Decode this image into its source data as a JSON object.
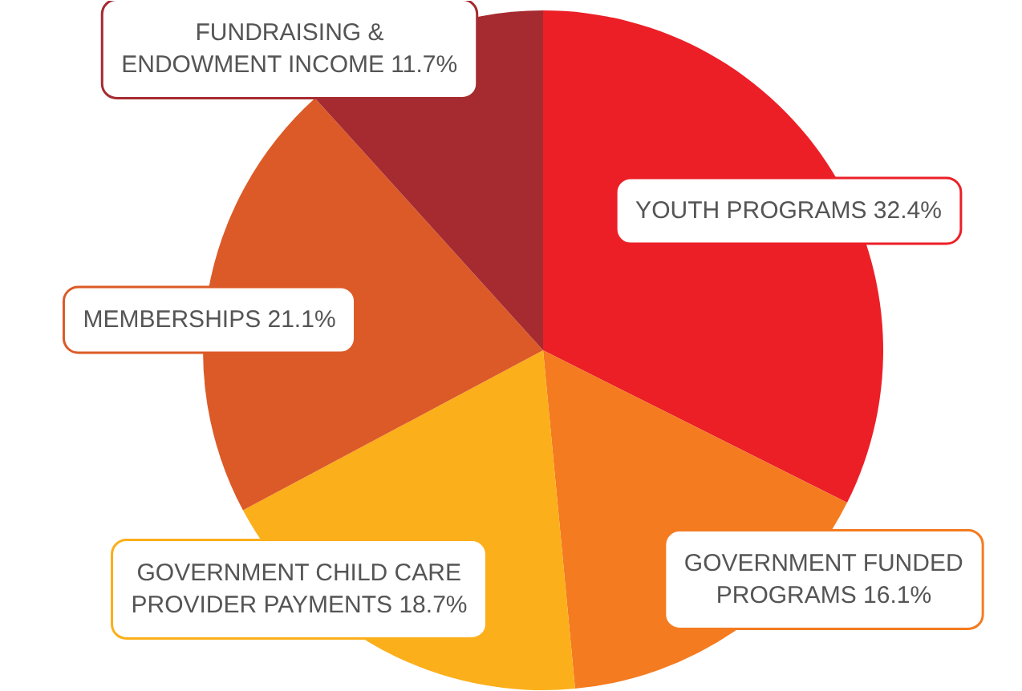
{
  "chart_data": {
    "type": "pie",
    "categories": [
      "YOUTH PROGRAMS",
      "GOVERNMENT FUNDED\nPROGRAMS",
      "GOVERNMENT CHILD CARE\nPROVIDER PAYMENTS",
      "MEMBERSHIPS",
      "FUNDRAISING &\nENDOWMENT INCOME"
    ],
    "values": [
      32.4,
      16.1,
      18.7,
      21.1,
      11.7
    ],
    "colors": [
      "#ec1f27",
      "#f47b20",
      "#fbaf1a",
      "#dc5a27",
      "#a52b30"
    ],
    "value_labels": [
      "32.4%",
      "16.1%",
      "18.7%",
      "21.1%",
      "11.7%"
    ]
  }
}
